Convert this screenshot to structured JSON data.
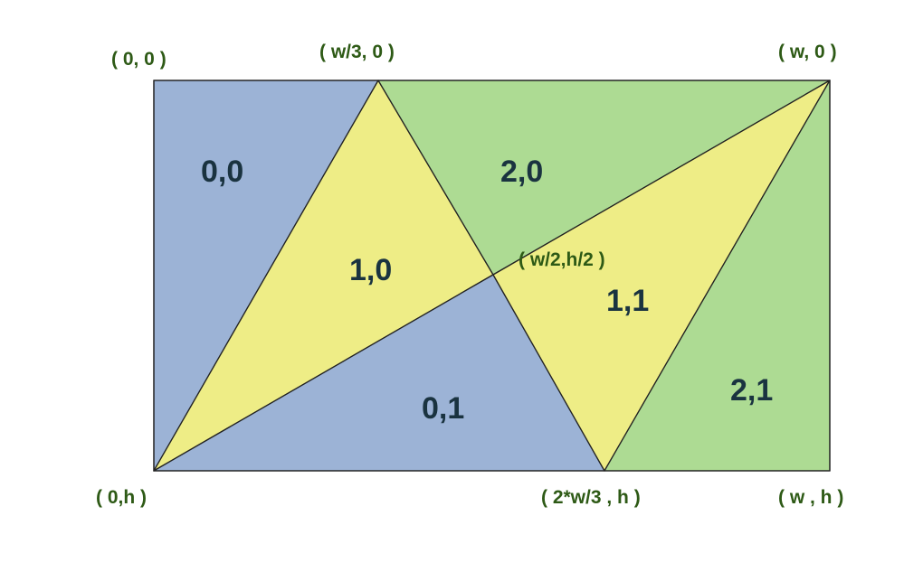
{
  "colors": {
    "blue": "#9cb3d6",
    "yellow": "#eeed86",
    "green": "#addb93",
    "region_text": "#1a3340",
    "coord_text": "#2e5a16"
  },
  "regions": [
    {
      "id": "0,0",
      "label": "0,0",
      "color": "blue"
    },
    {
      "id": "1,0",
      "label": "1,0",
      "color": "yellow"
    },
    {
      "id": "2,0",
      "label": "2,0",
      "color": "green"
    },
    {
      "id": "0,1",
      "label": "0,1",
      "color": "blue"
    },
    {
      "id": "1,1",
      "label": "1,1",
      "color": "yellow"
    },
    {
      "id": "2,1",
      "label": "2,1",
      "color": "green"
    }
  ],
  "coordinates": {
    "top_left": "( 0, 0 )",
    "top_third": "( w/3, 0 )",
    "top_right": "( w, 0 )",
    "center": "( w/2,h/2 )",
    "bottom_left": "( 0,h )",
    "bottom_two_thirds": "( 2*w/3 , h )",
    "bottom_right": "( w , h )"
  }
}
